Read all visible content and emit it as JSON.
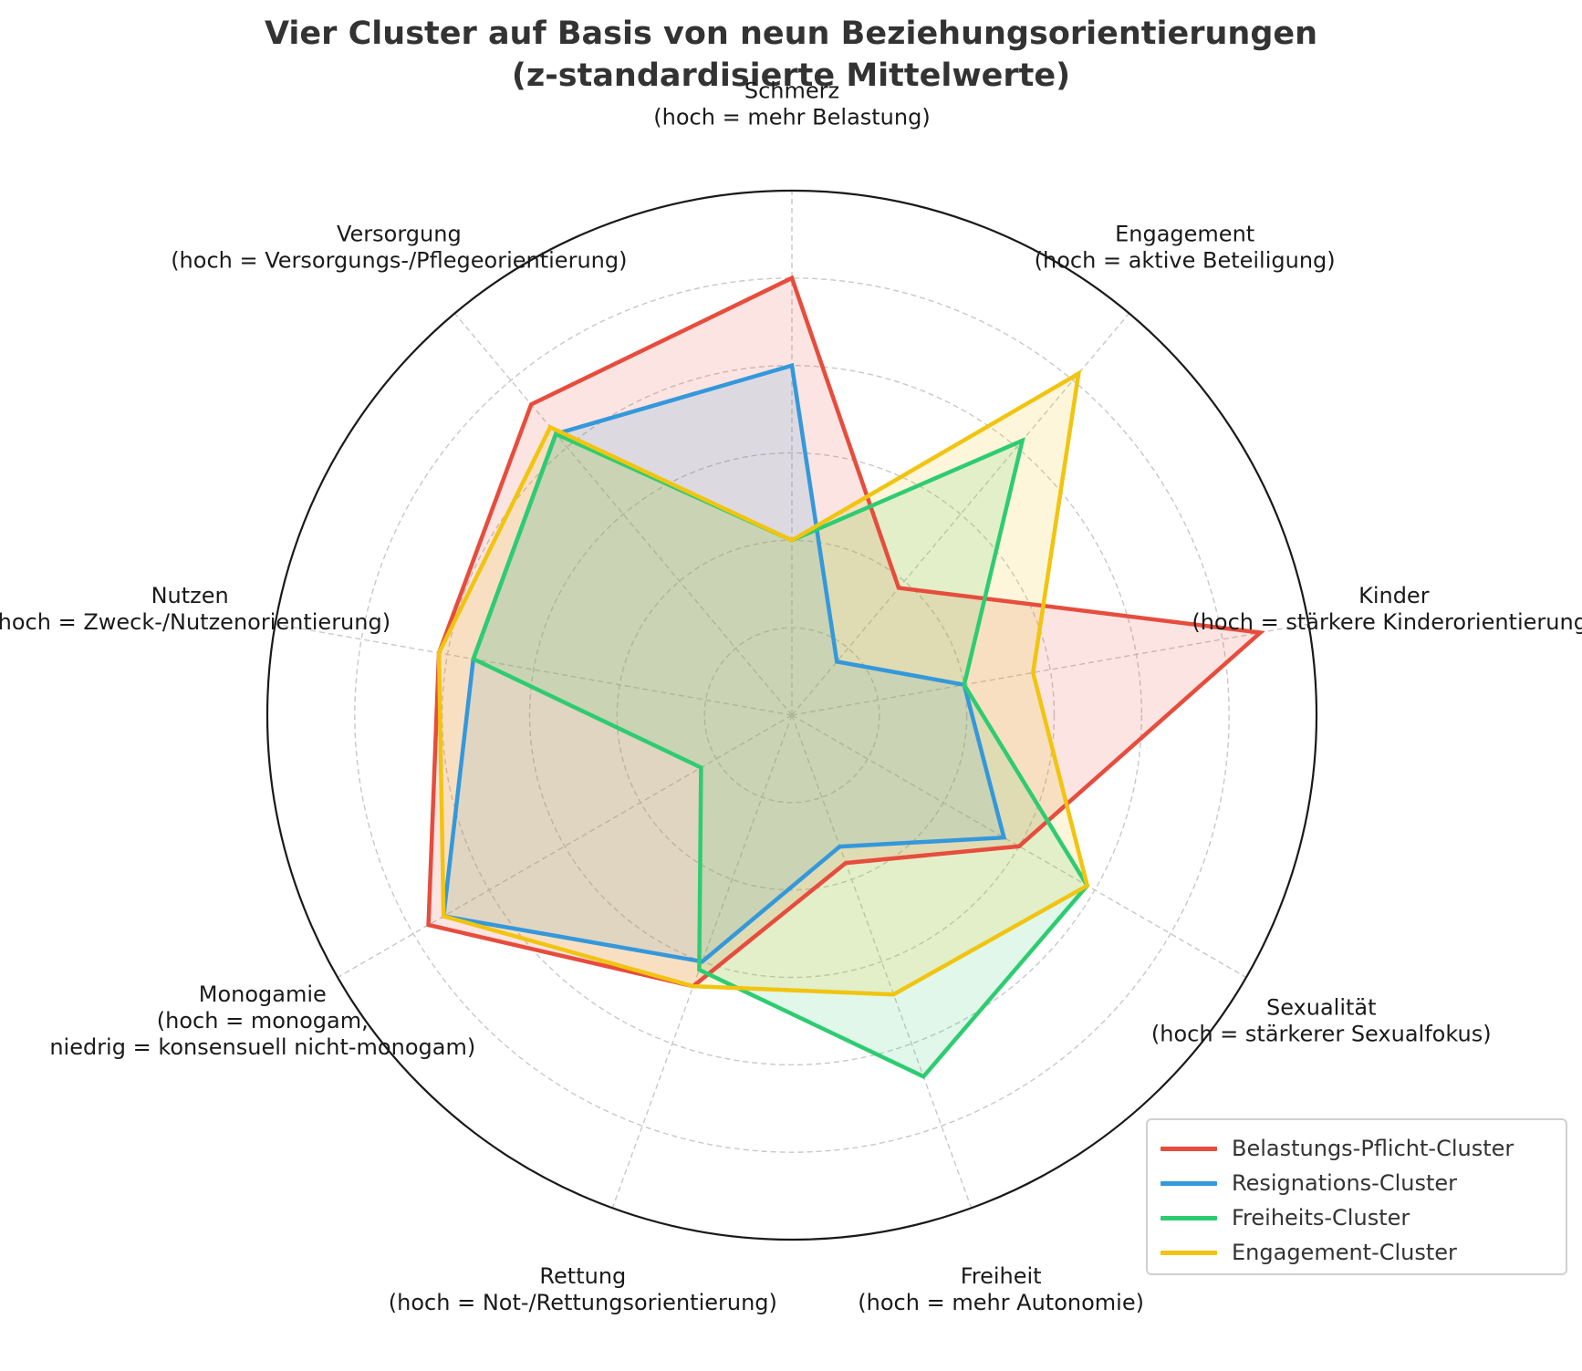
{
  "chart_data": {
    "type": "radar",
    "title": [
      "Vier Cluster auf Basis von neun Beziehungsorientierungen",
      "(z-standardisierte Mittelwerte)"
    ],
    "axes": [
      {
        "name": "Schmerz",
        "lines": [
          "Schmerz",
          "(hoch = mehr Belastung)"
        ]
      },
      {
        "name": "Engagement",
        "lines": [
          "Engagement",
          "(hoch = aktive Beteiligung)"
        ]
      },
      {
        "name": "Kinder",
        "lines": [
          "Kinder",
          "(hoch = stärkere Kinderorientierung)"
        ]
      },
      {
        "name": "Sexualität",
        "lines": [
          "Sexualität",
          "(hoch = stärkerer Sexualfokus)"
        ]
      },
      {
        "name": "Freiheit",
        "lines": [
          "Freiheit",
          "(hoch = mehr Autonomie)"
        ]
      },
      {
        "name": "Rettung",
        "lines": [
          "Rettung",
          "(hoch = Not-/Rettungsorientierung)"
        ]
      },
      {
        "name": "Monogamie",
        "lines": [
          "Monogamie",
          "(hoch = monogam,",
          "niedrig = konsensuell nicht-monogam)"
        ]
      },
      {
        "name": "Nutzen",
        "lines": [
          "Nutzen",
          "(hoch = Zweck-/Nutzenorientierung)"
        ]
      },
      {
        "name": "Versorgung",
        "lines": [
          "Versorgung",
          "(hoch = Versorgungs-/Pflegeorientierung)"
        ]
      }
    ],
    "r_range": [
      -2.0,
      1.0
    ],
    "gridlines": [
      -1.5,
      -1.0,
      -0.5,
      0.0,
      0.5
    ],
    "grid": true,
    "legend_position": "lower-right",
    "series": [
      {
        "name": "Belastungs-Pflicht-Cluster",
        "color": "#e74c3c",
        "values": [
          0.5,
          -1.05,
          0.72,
          -0.5,
          -1.1,
          -0.35,
          0.4,
          0.05,
          0.32
        ]
      },
      {
        "name": "Resignations-Cluster",
        "color": "#3498db",
        "values": [
          0.0,
          -1.6,
          -1.0,
          -0.6,
          -1.2,
          -0.5,
          0.3,
          -0.15,
          0.1
        ]
      },
      {
        "name": "Freiheits-Cluster",
        "color": "#2ecc71",
        "values": [
          -1.0,
          0.05,
          -1.0,
          -0.05,
          0.2,
          -0.45,
          -1.4,
          -0.15,
          0.1
        ]
      },
      {
        "name": "Engagement-Cluster",
        "color": "#f1c40f",
        "values": [
          -1.0,
          0.55,
          -0.6,
          -0.05,
          -0.3,
          -0.35,
          0.3,
          0.05,
          0.15
        ]
      }
    ]
  }
}
